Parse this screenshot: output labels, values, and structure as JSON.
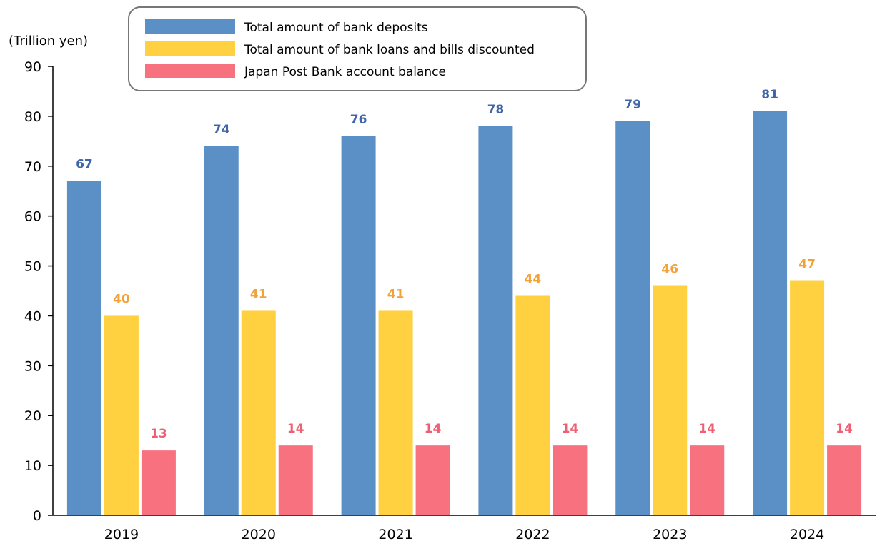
{
  "chart_data": {
    "type": "bar",
    "ylabel": "(Trillion yen)",
    "ylim": [
      0,
      90
    ],
    "yticks": [
      0,
      10,
      20,
      30,
      40,
      50,
      60,
      70,
      80,
      90
    ],
    "categories": [
      "2019",
      "2020",
      "2021",
      "2022",
      "2023",
      "2024"
    ],
    "series": [
      {
        "name": "Total amount of bank deposits",
        "color": "#5A90C6",
        "label_color": "#3F66A8",
        "values": [
          67,
          74,
          76,
          78,
          79,
          81
        ]
      },
      {
        "name": "Total amount of bank loans and bills discounted",
        "color": "#FFD040",
        "label_color": "#F3A23A",
        "values": [
          40,
          41,
          41,
          44,
          46,
          47
        ]
      },
      {
        "name": "Japan Post Bank account balance",
        "color": "#F7717F",
        "label_color": "#EE5F73",
        "values": [
          13,
          14,
          14,
          14,
          14,
          14
        ]
      }
    ],
    "legend_position": "top",
    "grid": false
  }
}
